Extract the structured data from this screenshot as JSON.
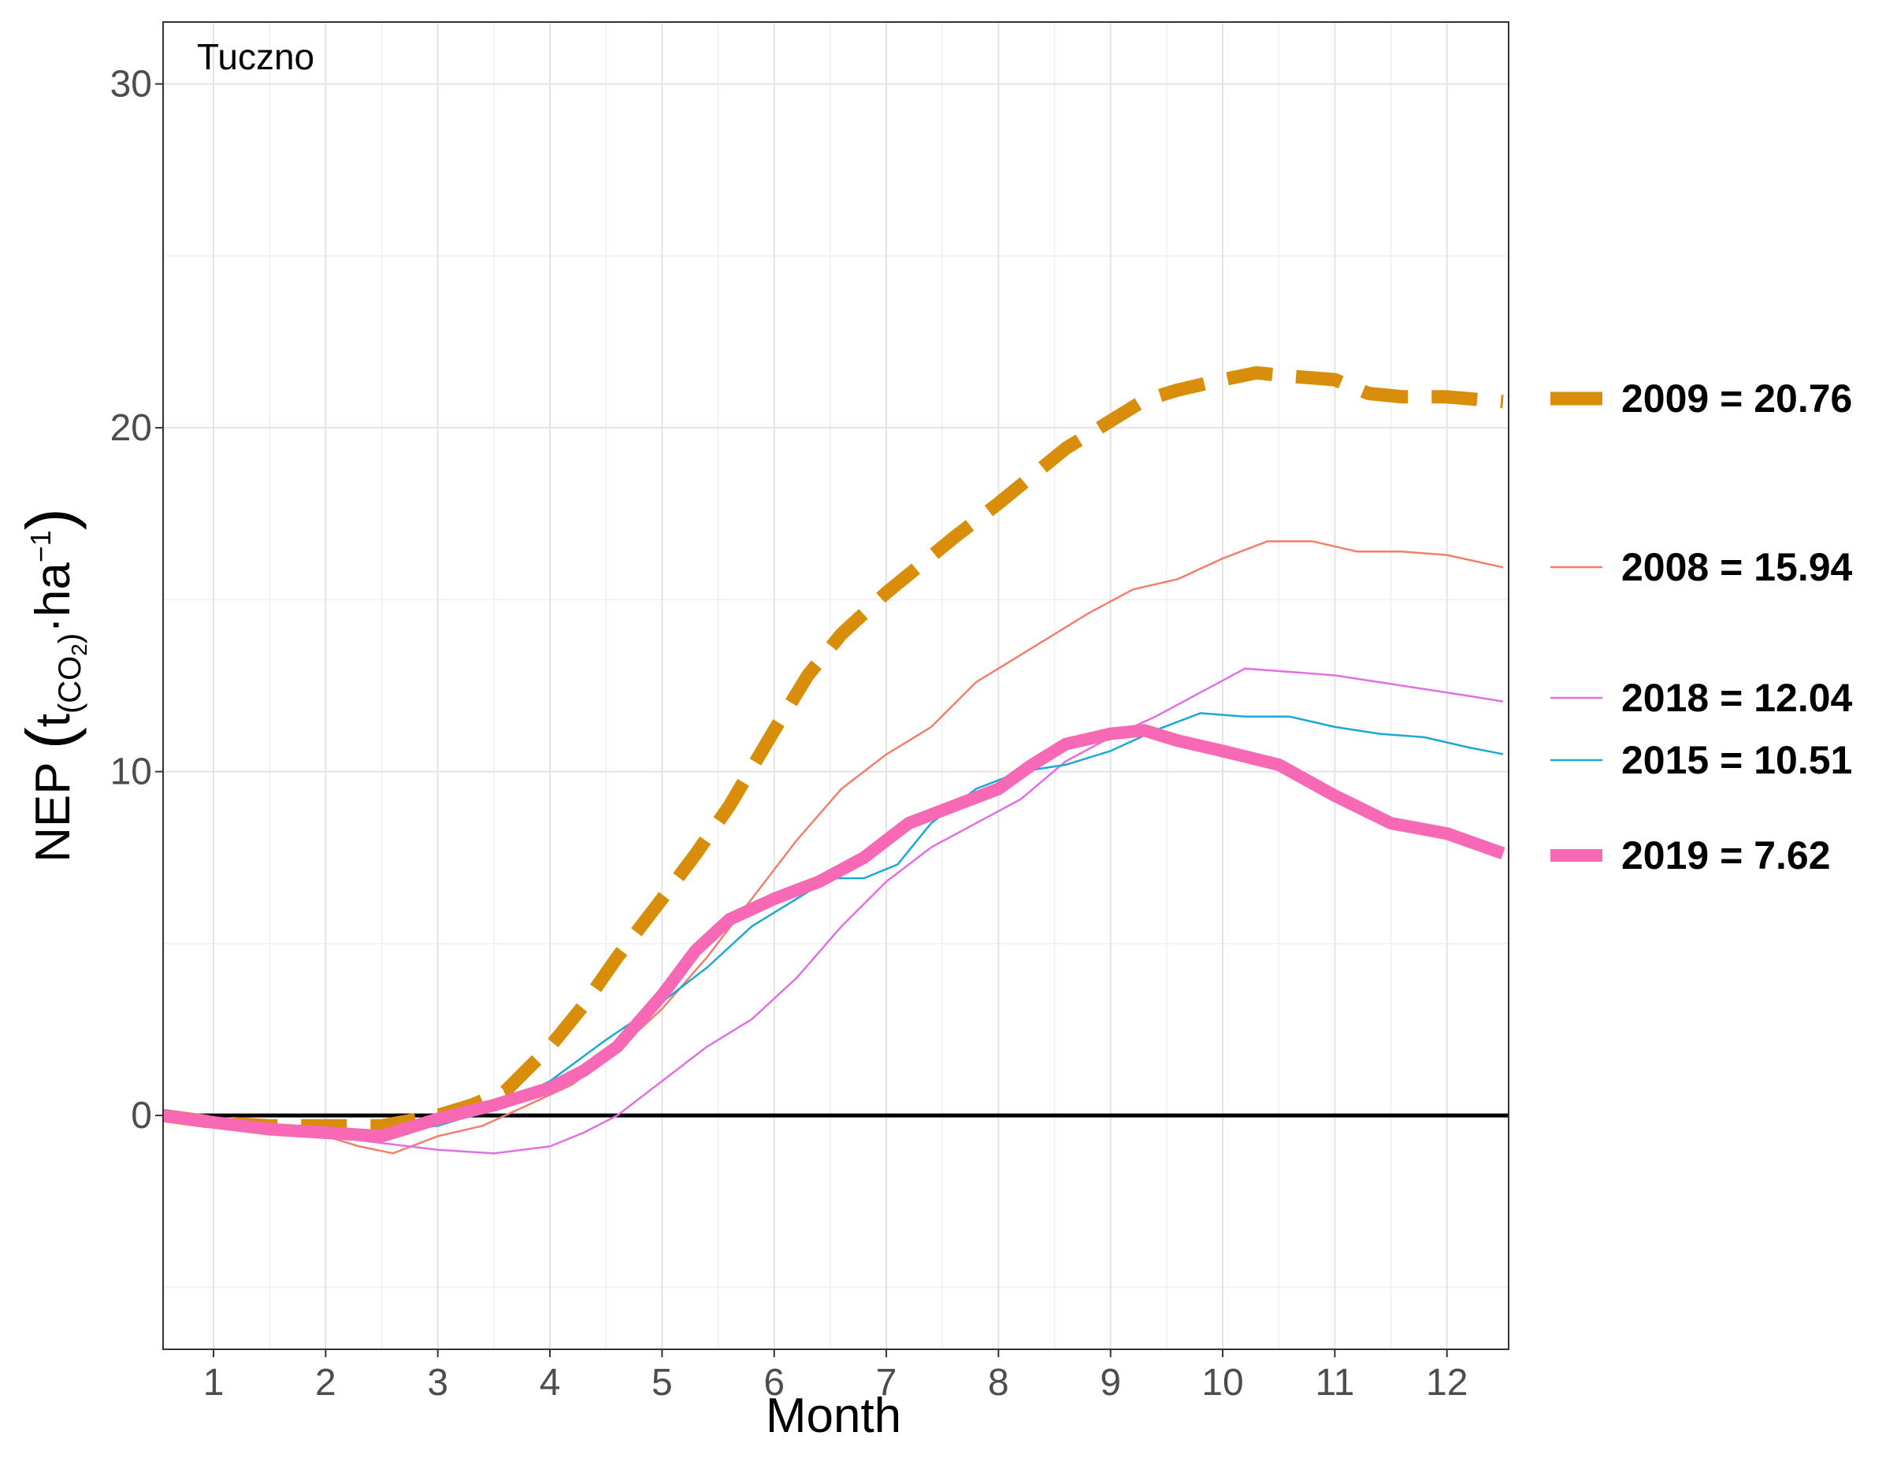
{
  "chart_data": {
    "type": "line",
    "panel_label": "Tuczno",
    "xlabel": "Month",
    "ylabel": "NEP (t(CO₂)·ha⁻¹)",
    "ylabel_parts": {
      "main": "NEP ",
      "t": "t",
      "sub_open": "(CO",
      "sub_2": "2",
      "sub_close": ")",
      "mid": "·ha",
      "sup": "−1"
    },
    "xlim": [
      0.55,
      12.55
    ],
    "ylim": [
      -6.8,
      31.8
    ],
    "x_ticks": [
      1,
      2,
      3,
      4,
      5,
      6,
      7,
      8,
      9,
      10,
      11,
      12
    ],
    "x_tick_labels": [
      "1",
      "2",
      "3",
      "4",
      "5",
      "6",
      "7",
      "8",
      "9",
      "10",
      "11",
      "12"
    ],
    "y_ticks": [
      0,
      10,
      20,
      30
    ],
    "y_tick_labels": [
      "0",
      "10",
      "20",
      "30"
    ],
    "zero_line": true,
    "grid": true,
    "legend_position": "right",
    "series": [
      {
        "name": "2008",
        "legend": "2008 = 15.94",
        "color": "#F07F6E",
        "style": "thin",
        "x": [
          0.55,
          1.0,
          1.5,
          2.0,
          2.3,
          2.6,
          3.0,
          3.4,
          3.8,
          4.2,
          4.6,
          5.0,
          5.4,
          5.8,
          6.2,
          6.6,
          7.0,
          7.4,
          7.8,
          8.0,
          8.4,
          8.8,
          9.2,
          9.6,
          10.0,
          10.4,
          10.8,
          11.2,
          11.6,
          12.0,
          12.5
        ],
        "y": [
          0.0,
          -0.1,
          -0.4,
          -0.6,
          -0.9,
          -1.1,
          -0.6,
          -0.3,
          0.3,
          0.9,
          1.9,
          3.1,
          4.6,
          6.3,
          8.0,
          9.5,
          10.5,
          11.3,
          12.6,
          13.0,
          13.8,
          14.6,
          15.3,
          15.6,
          16.2,
          16.7,
          16.7,
          16.4,
          16.4,
          16.3,
          15.94
        ]
      },
      {
        "name": "2018",
        "legend": "2018 = 12.04",
        "color": "#E26FE3",
        "style": "thin",
        "x": [
          0.55,
          1.0,
          1.5,
          2.0,
          2.5,
          3.0,
          3.5,
          4.0,
          4.3,
          4.6,
          5.0,
          5.4,
          5.8,
          6.2,
          6.6,
          7.0,
          7.4,
          7.8,
          8.2,
          8.6,
          9.0,
          9.4,
          9.8,
          10.2,
          10.6,
          11.0,
          11.4,
          11.8,
          12.2,
          12.5
        ],
        "y": [
          0.0,
          -0.2,
          -0.4,
          -0.6,
          -0.8,
          -1.0,
          -1.1,
          -0.9,
          -0.5,
          0.0,
          1.0,
          2.0,
          2.8,
          4.0,
          5.5,
          6.8,
          7.8,
          8.5,
          9.2,
          10.3,
          11.0,
          11.6,
          12.3,
          13.0,
          12.9,
          12.8,
          12.6,
          12.4,
          12.2,
          12.04
        ]
      },
      {
        "name": "2015",
        "legend": "2015 = 10.51",
        "color": "#1BA9D4",
        "style": "thin",
        "x": [
          0.55,
          1.0,
          1.5,
          2.0,
          2.5,
          3.0,
          3.5,
          4.0,
          4.5,
          5.0,
          5.4,
          5.8,
          6.2,
          6.5,
          6.8,
          7.1,
          7.4,
          7.8,
          8.2,
          8.6,
          9.0,
          9.4,
          9.8,
          10.2,
          10.6,
          11.0,
          11.4,
          11.8,
          12.2,
          12.5
        ],
        "y": [
          0.0,
          -0.2,
          -0.3,
          -0.5,
          -0.5,
          -0.3,
          0.2,
          1.0,
          2.2,
          3.3,
          4.3,
          5.5,
          6.3,
          6.9,
          6.9,
          7.3,
          8.5,
          9.5,
          10.0,
          10.2,
          10.6,
          11.2,
          11.7,
          11.6,
          11.6,
          11.3,
          11.1,
          11.0,
          10.7,
          10.51
        ]
      },
      {
        "name": "2009",
        "legend": "2009 = 20.76",
        "color": "#D98E0B",
        "style": "dashed",
        "x": [
          0.55,
          1.0,
          1.5,
          2.0,
          2.5,
          3.0,
          3.3,
          3.6,
          4.0,
          4.3,
          4.6,
          5.0,
          5.3,
          5.6,
          6.0,
          6.3,
          6.6,
          7.0,
          7.3,
          7.6,
          8.0,
          8.3,
          8.6,
          9.0,
          9.3,
          9.6,
          10.0,
          10.3,
          10.6,
          11.0,
          11.3,
          11.6,
          12.0,
          12.5
        ],
        "y": [
          0.0,
          -0.2,
          -0.3,
          -0.3,
          -0.3,
          0.0,
          0.3,
          0.7,
          2.0,
          3.2,
          4.6,
          6.3,
          7.6,
          9.0,
          11.2,
          12.8,
          14.0,
          15.2,
          16.0,
          16.8,
          17.8,
          18.6,
          19.4,
          20.2,
          20.8,
          21.1,
          21.4,
          21.6,
          21.5,
          21.4,
          21.0,
          20.9,
          20.9,
          20.76
        ]
      },
      {
        "name": "2019",
        "legend": "2019 = 7.62",
        "color": "#F768B5",
        "style": "thick",
        "x": [
          0.55,
          1.0,
          1.5,
          2.0,
          2.5,
          3.0,
          3.5,
          4.0,
          4.3,
          4.6,
          5.0,
          5.3,
          5.6,
          6.0,
          6.4,
          6.8,
          7.2,
          7.6,
          8.0,
          8.3,
          8.6,
          9.0,
          9.3,
          9.6,
          10.0,
          10.5,
          11.0,
          11.5,
          12.0,
          12.5
        ],
        "y": [
          0.0,
          -0.2,
          -0.4,
          -0.5,
          -0.6,
          -0.1,
          0.3,
          0.8,
          1.3,
          2.0,
          3.5,
          4.8,
          5.7,
          6.3,
          6.8,
          7.5,
          8.5,
          9.0,
          9.5,
          10.2,
          10.8,
          11.1,
          11.2,
          10.9,
          10.6,
          10.2,
          9.3,
          8.5,
          8.2,
          7.62
        ]
      }
    ]
  }
}
